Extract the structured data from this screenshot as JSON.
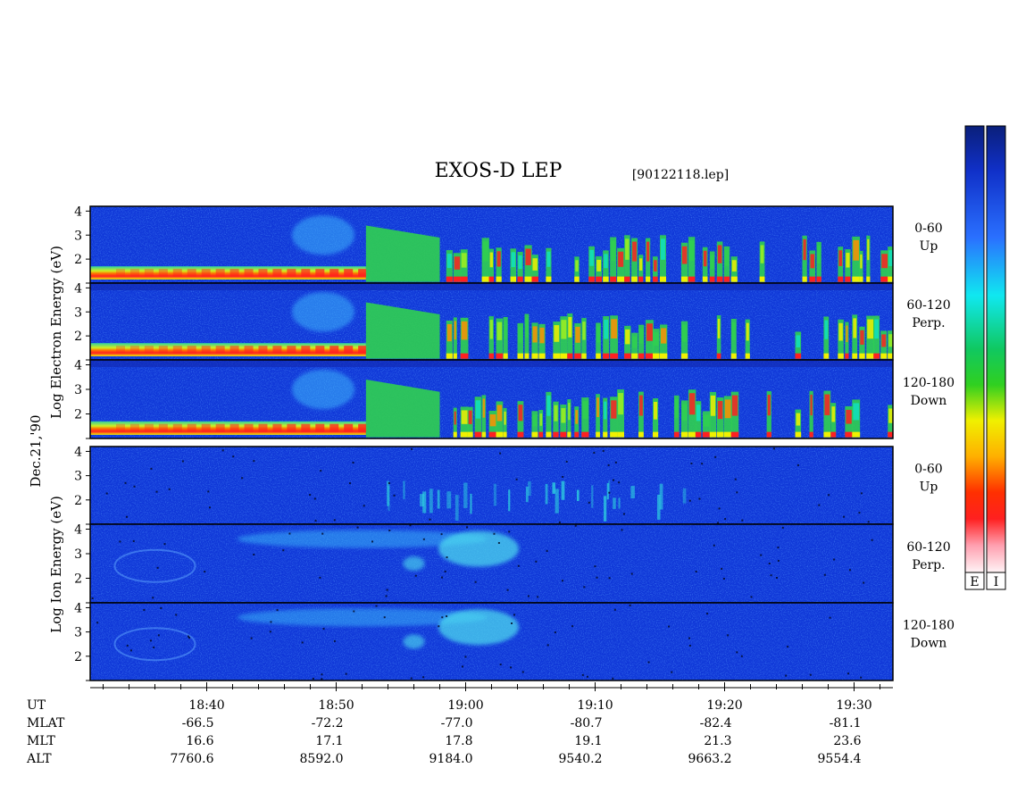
{
  "title": "EXOS-D LEP",
  "filename": "[90122118.lep]",
  "date_label": "Dec.21,'90",
  "electron_ylabel": [
    "Log",
    "Electron",
    "Energy",
    "(eV)"
  ],
  "ion_ylabel": [
    "Log",
    "Ion",
    "Energy",
    "(eV)"
  ],
  "colorbar_labels": [
    "E",
    "I"
  ],
  "colors": {
    "background_spectrogram": "#1038d8",
    "colorbar_top": "#0a1f7a"
  },
  "chart_data": {
    "type": "heatmap",
    "x_axis": {
      "label": "UT",
      "range": [
        "18:31",
        "19:33"
      ],
      "major_ticks": [
        "18:40",
        "18:50",
        "19:00",
        "19:10",
        "19:20",
        "19:30"
      ],
      "major_ticks_minutes": [
        40,
        50,
        60,
        70,
        80,
        90
      ],
      "range_minutes": [
        31,
        93
      ],
      "minor_tick_step_minutes": 2
    },
    "ephemeris": [
      {
        "label": "MLAT",
        "values": [
          "-66.5",
          "-72.2",
          "-77.0",
          "-80.7",
          "-82.4",
          "-81.1"
        ]
      },
      {
        "label": "MLT",
        "values": [
          "16.6",
          "17.1",
          "17.8",
          "19.1",
          "21.3",
          "23.6"
        ]
      },
      {
        "label": "ALT",
        "values": [
          "7760.6",
          "8592.0",
          "9184.0",
          "9540.2",
          "9663.2",
          "9554.4"
        ]
      }
    ],
    "y_axis": {
      "scale": "log10 energy (eV)",
      "ticks": [
        "1",
        "2",
        "3",
        "4"
      ],
      "range": [
        1,
        4.2
      ]
    },
    "panels": [
      {
        "species": "electron",
        "pitch_angle": "0-60",
        "direction": "Up"
      },
      {
        "species": "electron",
        "pitch_angle": "60-120",
        "direction": "Perp."
      },
      {
        "species": "electron",
        "pitch_angle": "120-180",
        "direction": "Down"
      },
      {
        "species": "ion",
        "pitch_angle": "0-60",
        "direction": "Up"
      },
      {
        "species": "ion",
        "pitch_angle": "60-120",
        "direction": "Perp."
      },
      {
        "species": "ion",
        "pitch_angle": "120-180",
        "direction": "Down"
      }
    ],
    "colorbar": {
      "entries": [
        "E",
        "I"
      ],
      "scale": [
        "white",
        "pink",
        "red",
        "orange",
        "yellow",
        "green",
        "cyan",
        "blue",
        "dark blue"
      ]
    }
  }
}
